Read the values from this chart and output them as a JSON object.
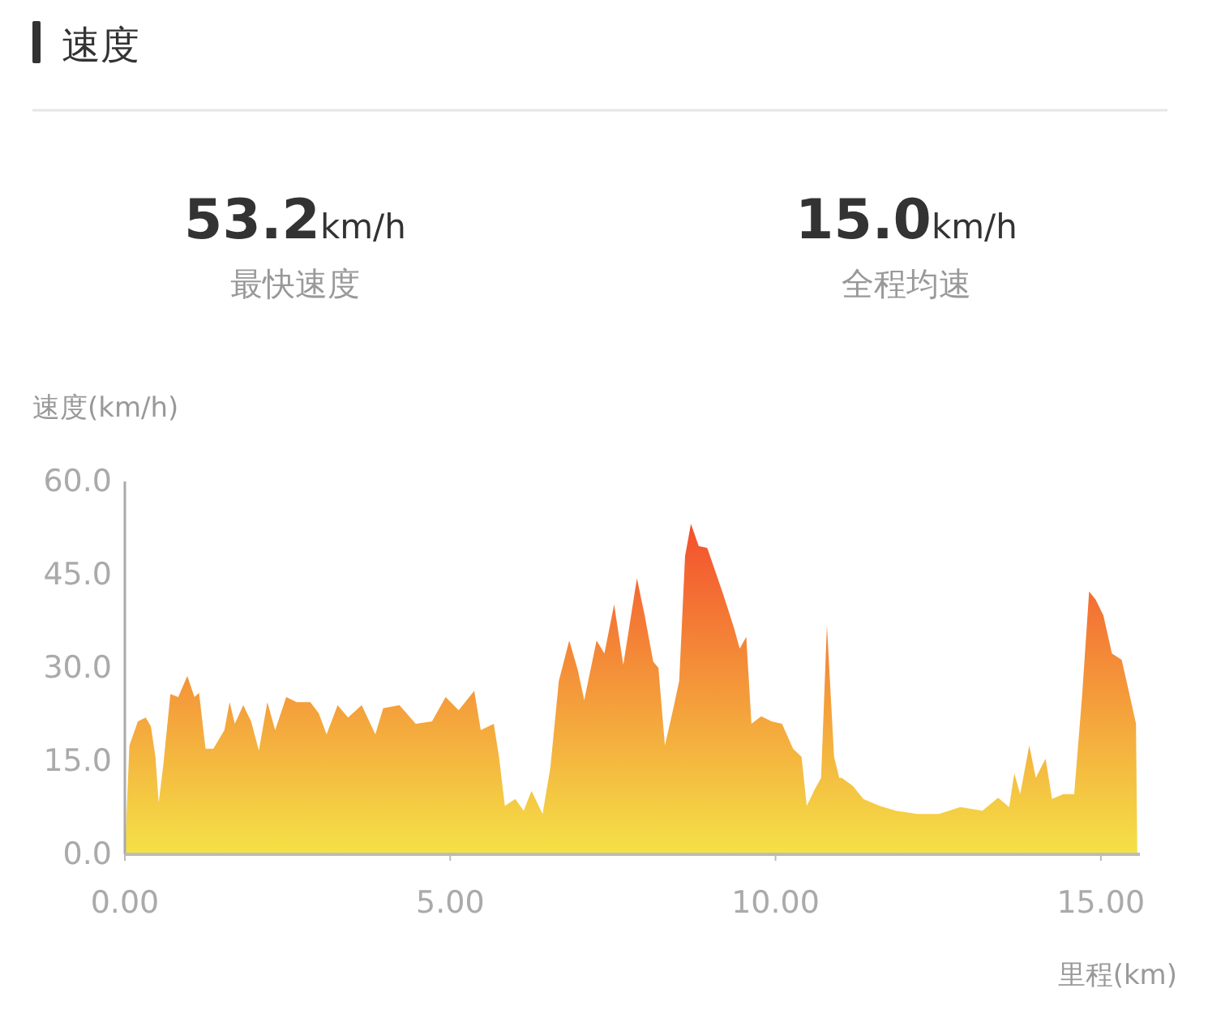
{
  "chart_data": {
    "type": "area",
    "title": "速度",
    "annotations": [
      "53.2km/h",
      "最快速度",
      "15.0km/h",
      "全程均速"
    ],
    "ylabel": "速度(km/h)",
    "xlabel": "里程(km)",
    "xlim": [
      0,
      15.6
    ],
    "xticks": [
      {
        "value": 0,
        "label": "0.00"
      },
      {
        "value": 5,
        "label": "5.00"
      },
      {
        "value": 10,
        "label": "10.00"
      },
      {
        "value": 15,
        "label": "15.00"
      }
    ],
    "ylim": [
      0,
      60
    ],
    "yticks": [
      {
        "value": 0,
        "label": "0.0"
      },
      {
        "value": 15,
        "label": "15.0"
      },
      {
        "value": 30,
        "label": "30.0"
      },
      {
        "value": 45,
        "label": "45.0"
      },
      {
        "value": 60,
        "label": "60.0"
      }
    ],
    "grid": false,
    "series": [
      {
        "color": "#f39a2a",
        "x": [
          0,
          0.07,
          0.2,
          0.32,
          0.4,
          0.47,
          0.52,
          0.59,
          0.7,
          0.82,
          0.96,
          1.07,
          1.14,
          1.24,
          1.36,
          1.53,
          1.61,
          1.69,
          1.82,
          1.94,
          2.06,
          2.19,
          2.31,
          2.48,
          2.64,
          2.85,
          2.98,
          3.1,
          3.27,
          3.43,
          3.64,
          3.85,
          3.97,
          4.22,
          4.47,
          4.72,
          4.93,
          5.13,
          5.37,
          5.47,
          5.67,
          5.75,
          5.84,
          6.0,
          6.13,
          6.25,
          6.42,
          6.54,
          6.67,
          6.83,
          6.96,
          7.06,
          7.25,
          7.37,
          7.52,
          7.66,
          7.87,
          7.99,
          8.12,
          8.2,
          8.3,
          8.43,
          8.52,
          8.61,
          8.7,
          8.82,
          8.95,
          9.07,
          9.2,
          9.36,
          9.45,
          9.55,
          9.63,
          9.78,
          9.94,
          10.1,
          10.27,
          10.4,
          10.48,
          10.6,
          10.7,
          10.79,
          10.9,
          10.98,
          11.02,
          11.19,
          11.35,
          11.6,
          11.85,
          12.18,
          12.51,
          12.84,
          13.18,
          13.42,
          13.59,
          13.67,
          13.76,
          13.9,
          14.0,
          14.15,
          14.25,
          14.42,
          14.59,
          14.71,
          14.82,
          14.92,
          15.04,
          15.17,
          15.32,
          15.46,
          15.54,
          15.56
        ],
        "values": [
          0,
          17.5,
          21.4,
          22,
          20.6,
          15.7,
          8.3,
          14.3,
          25.8,
          25.3,
          28.7,
          25.3,
          26,
          17,
          17,
          20,
          24.5,
          21,
          24,
          21.4,
          16.7,
          24.5,
          20,
          25.3,
          24.5,
          24.5,
          22.7,
          19.3,
          24,
          22,
          24,
          19.3,
          23.5,
          24,
          21,
          21.4,
          25.3,
          23.2,
          26.3,
          20,
          21,
          15.7,
          7.8,
          8.9,
          7,
          10.2,
          6.5,
          14,
          27.9,
          34.4,
          29.7,
          24.8,
          34.4,
          32.3,
          40.2,
          30.5,
          44.4,
          38.4,
          31,
          30,
          17.5,
          23.5,
          27.9,
          48,
          53.2,
          49.6,
          49.3,
          45.7,
          41.7,
          36.5,
          33.1,
          35,
          21,
          22.2,
          21.4,
          21,
          17,
          15.7,
          7.8,
          10.4,
          12.3,
          36.8,
          15.7,
          12.3,
          12.3,
          11,
          8.9,
          7.8,
          7,
          6.5,
          6.5,
          7.6,
          7,
          9.1,
          7.6,
          13,
          9.7,
          17.5,
          12.3,
          15.4,
          8.9,
          9.7,
          9.7,
          25.3,
          42.3,
          41,
          38.4,
          32.3,
          31.3,
          24.8,
          21,
          0
        ]
      }
    ]
  }
}
